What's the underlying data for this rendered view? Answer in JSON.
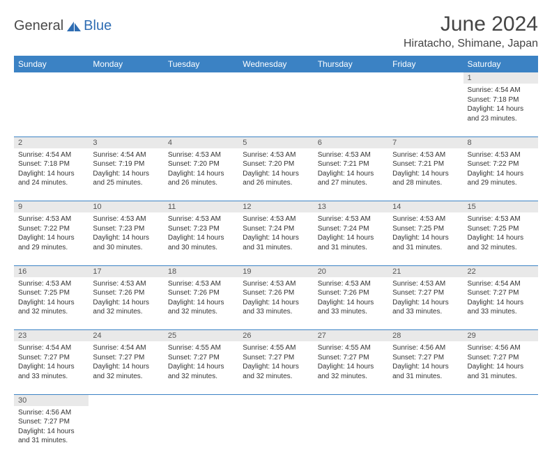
{
  "logo": {
    "text1": "General",
    "text2": "Blue"
  },
  "title": "June 2024",
  "location": "Hiratacho, Shimane, Japan",
  "colors": {
    "header_bg": "#3b82c4",
    "header_text": "#ffffff",
    "daynum_bg": "#e9e9e9",
    "row_divider": "#3b82c4",
    "logo_blue": "#2f6db3",
    "text": "#333333"
  },
  "weekdays": [
    "Sunday",
    "Monday",
    "Tuesday",
    "Wednesday",
    "Thursday",
    "Friday",
    "Saturday"
  ],
  "weeks": [
    [
      null,
      null,
      null,
      null,
      null,
      null,
      {
        "n": "1",
        "sr": "Sunrise: 4:54 AM",
        "ss": "Sunset: 7:18 PM",
        "d1": "Daylight: 14 hours",
        "d2": "and 23 minutes."
      }
    ],
    [
      {
        "n": "2",
        "sr": "Sunrise: 4:54 AM",
        "ss": "Sunset: 7:18 PM",
        "d1": "Daylight: 14 hours",
        "d2": "and 24 minutes."
      },
      {
        "n": "3",
        "sr": "Sunrise: 4:54 AM",
        "ss": "Sunset: 7:19 PM",
        "d1": "Daylight: 14 hours",
        "d2": "and 25 minutes."
      },
      {
        "n": "4",
        "sr": "Sunrise: 4:53 AM",
        "ss": "Sunset: 7:20 PM",
        "d1": "Daylight: 14 hours",
        "d2": "and 26 minutes."
      },
      {
        "n": "5",
        "sr": "Sunrise: 4:53 AM",
        "ss": "Sunset: 7:20 PM",
        "d1": "Daylight: 14 hours",
        "d2": "and 26 minutes."
      },
      {
        "n": "6",
        "sr": "Sunrise: 4:53 AM",
        "ss": "Sunset: 7:21 PM",
        "d1": "Daylight: 14 hours",
        "d2": "and 27 minutes."
      },
      {
        "n": "7",
        "sr": "Sunrise: 4:53 AM",
        "ss": "Sunset: 7:21 PM",
        "d1": "Daylight: 14 hours",
        "d2": "and 28 minutes."
      },
      {
        "n": "8",
        "sr": "Sunrise: 4:53 AM",
        "ss": "Sunset: 7:22 PM",
        "d1": "Daylight: 14 hours",
        "d2": "and 29 minutes."
      }
    ],
    [
      {
        "n": "9",
        "sr": "Sunrise: 4:53 AM",
        "ss": "Sunset: 7:22 PM",
        "d1": "Daylight: 14 hours",
        "d2": "and 29 minutes."
      },
      {
        "n": "10",
        "sr": "Sunrise: 4:53 AM",
        "ss": "Sunset: 7:23 PM",
        "d1": "Daylight: 14 hours",
        "d2": "and 30 minutes."
      },
      {
        "n": "11",
        "sr": "Sunrise: 4:53 AM",
        "ss": "Sunset: 7:23 PM",
        "d1": "Daylight: 14 hours",
        "d2": "and 30 minutes."
      },
      {
        "n": "12",
        "sr": "Sunrise: 4:53 AM",
        "ss": "Sunset: 7:24 PM",
        "d1": "Daylight: 14 hours",
        "d2": "and 31 minutes."
      },
      {
        "n": "13",
        "sr": "Sunrise: 4:53 AM",
        "ss": "Sunset: 7:24 PM",
        "d1": "Daylight: 14 hours",
        "d2": "and 31 minutes."
      },
      {
        "n": "14",
        "sr": "Sunrise: 4:53 AM",
        "ss": "Sunset: 7:25 PM",
        "d1": "Daylight: 14 hours",
        "d2": "and 31 minutes."
      },
      {
        "n": "15",
        "sr": "Sunrise: 4:53 AM",
        "ss": "Sunset: 7:25 PM",
        "d1": "Daylight: 14 hours",
        "d2": "and 32 minutes."
      }
    ],
    [
      {
        "n": "16",
        "sr": "Sunrise: 4:53 AM",
        "ss": "Sunset: 7:25 PM",
        "d1": "Daylight: 14 hours",
        "d2": "and 32 minutes."
      },
      {
        "n": "17",
        "sr": "Sunrise: 4:53 AM",
        "ss": "Sunset: 7:26 PM",
        "d1": "Daylight: 14 hours",
        "d2": "and 32 minutes."
      },
      {
        "n": "18",
        "sr": "Sunrise: 4:53 AM",
        "ss": "Sunset: 7:26 PM",
        "d1": "Daylight: 14 hours",
        "d2": "and 32 minutes."
      },
      {
        "n": "19",
        "sr": "Sunrise: 4:53 AM",
        "ss": "Sunset: 7:26 PM",
        "d1": "Daylight: 14 hours",
        "d2": "and 33 minutes."
      },
      {
        "n": "20",
        "sr": "Sunrise: 4:53 AM",
        "ss": "Sunset: 7:26 PM",
        "d1": "Daylight: 14 hours",
        "d2": "and 33 minutes."
      },
      {
        "n": "21",
        "sr": "Sunrise: 4:53 AM",
        "ss": "Sunset: 7:27 PM",
        "d1": "Daylight: 14 hours",
        "d2": "and 33 minutes."
      },
      {
        "n": "22",
        "sr": "Sunrise: 4:54 AM",
        "ss": "Sunset: 7:27 PM",
        "d1": "Daylight: 14 hours",
        "d2": "and 33 minutes."
      }
    ],
    [
      {
        "n": "23",
        "sr": "Sunrise: 4:54 AM",
        "ss": "Sunset: 7:27 PM",
        "d1": "Daylight: 14 hours",
        "d2": "and 33 minutes."
      },
      {
        "n": "24",
        "sr": "Sunrise: 4:54 AM",
        "ss": "Sunset: 7:27 PM",
        "d1": "Daylight: 14 hours",
        "d2": "and 32 minutes."
      },
      {
        "n": "25",
        "sr": "Sunrise: 4:55 AM",
        "ss": "Sunset: 7:27 PM",
        "d1": "Daylight: 14 hours",
        "d2": "and 32 minutes."
      },
      {
        "n": "26",
        "sr": "Sunrise: 4:55 AM",
        "ss": "Sunset: 7:27 PM",
        "d1": "Daylight: 14 hours",
        "d2": "and 32 minutes."
      },
      {
        "n": "27",
        "sr": "Sunrise: 4:55 AM",
        "ss": "Sunset: 7:27 PM",
        "d1": "Daylight: 14 hours",
        "d2": "and 32 minutes."
      },
      {
        "n": "28",
        "sr": "Sunrise: 4:56 AM",
        "ss": "Sunset: 7:27 PM",
        "d1": "Daylight: 14 hours",
        "d2": "and 31 minutes."
      },
      {
        "n": "29",
        "sr": "Sunrise: 4:56 AM",
        "ss": "Sunset: 7:27 PM",
        "d1": "Daylight: 14 hours",
        "d2": "and 31 minutes."
      }
    ],
    [
      {
        "n": "30",
        "sr": "Sunrise: 4:56 AM",
        "ss": "Sunset: 7:27 PM",
        "d1": "Daylight: 14 hours",
        "d2": "and 31 minutes."
      },
      null,
      null,
      null,
      null,
      null,
      null
    ]
  ]
}
